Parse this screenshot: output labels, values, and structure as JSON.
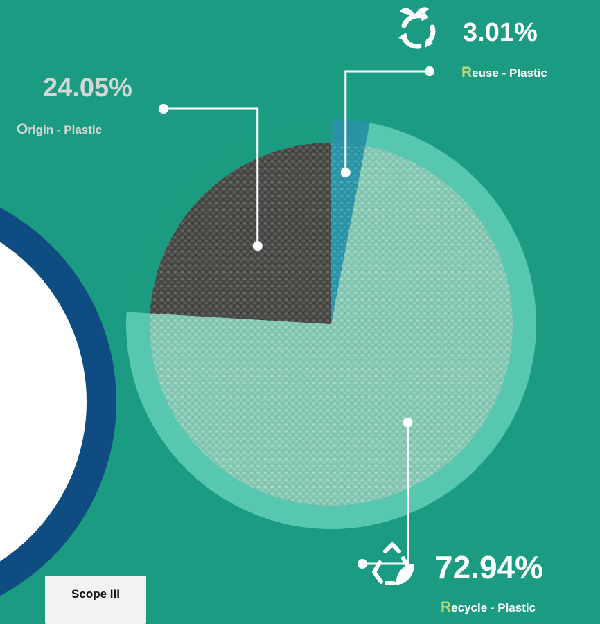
{
  "colors": {
    "background": "#1b9c82",
    "ring": "#57c7b0",
    "navy": "#0f4c81",
    "white": "#ffffff",
    "origin_slice": "#4a4a48",
    "recycle_slice": "#86c7b4",
    "reuse_slice": "#2a93a6",
    "origin_text": "#d6d6d6",
    "accent_green": "#b8d67a"
  },
  "chart_data": {
    "type": "pie",
    "categories": [
      "Origin - Plastic",
      "Reuse - Plastic",
      "Recycle - Plastic"
    ],
    "values": [
      24.05,
      3.01,
      72.94
    ],
    "value_labels": [
      "24.05%",
      "3.01%",
      "72.94%"
    ],
    "legend": "callout labels with leader lines"
  },
  "labels": {
    "origin": {
      "percent": "24.05%",
      "initial": "O",
      "rest": "rigin - Plastic"
    },
    "reuse": {
      "percent": "3.01%",
      "initial": "R",
      "rest": "euse - Plastic",
      "icon": "reuse-cycle-icon"
    },
    "recycle": {
      "percent": "72.94%",
      "initial": "R",
      "rest": "ecycle - Plastic",
      "icon": "recycle-leaf-icon"
    }
  },
  "scope": {
    "label": "Scope III"
  }
}
